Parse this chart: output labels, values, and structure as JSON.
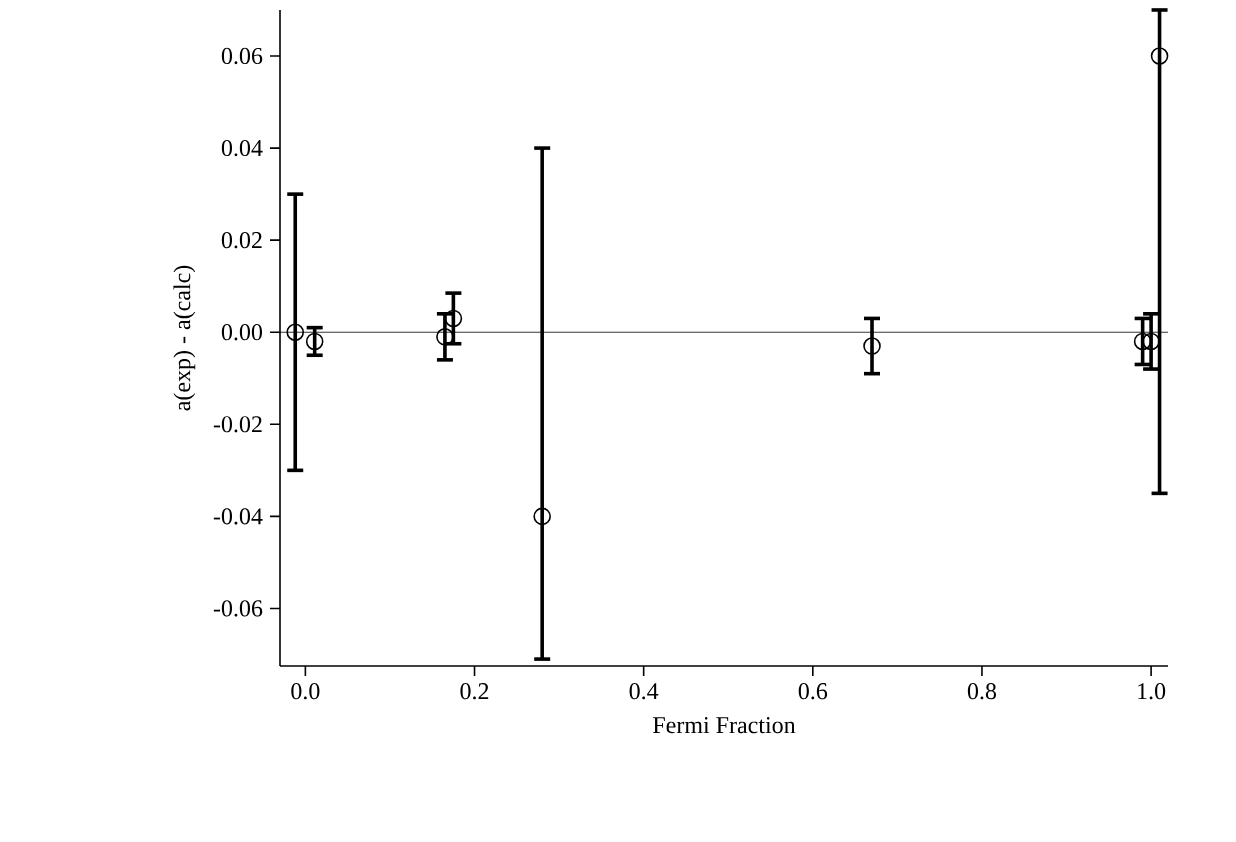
{
  "chart_data": {
    "type": "scatter",
    "xlabel": "Fermi Fraction",
    "ylabel": "a(exp) - a(calc)",
    "x": [
      -0.012,
      0.011,
      0.165,
      0.175,
      0.28,
      0.67,
      0.99,
      1.0,
      1.01
    ],
    "values": [
      0,
      -0.002,
      -0.001,
      0.003,
      -0.04,
      -0.003,
      -0.002,
      -0.002,
      0.06
    ],
    "errors": [
      0.03,
      0.003,
      0.005,
      0.0055,
      [
        -0.071,
        0.04
      ],
      0.006,
      0.005,
      0.006,
      [
        -0.035,
        0.07
      ]
    ],
    "color": "#000000",
    "marker": "circle",
    "grid": false,
    "xlim": [
      -0.03,
      1.02
    ],
    "ylim": [
      -0.0725,
      0.07
    ],
    "xticks": [
      {
        "value": 0,
        "label": "0.0"
      },
      0.2,
      0.4,
      0.6,
      0.8,
      {
        "value": 1,
        "label": "1.0"
      }
    ],
    "yticks": [
      -0.06,
      -0.04,
      -0.02,
      {
        "value": 0,
        "label": "0.00"
      },
      0.02,
      0.04,
      0.06
    ],
    "ref_lines": [
      {
        "axis": "y",
        "value": 0,
        "color": "#000000"
      }
    ]
  }
}
